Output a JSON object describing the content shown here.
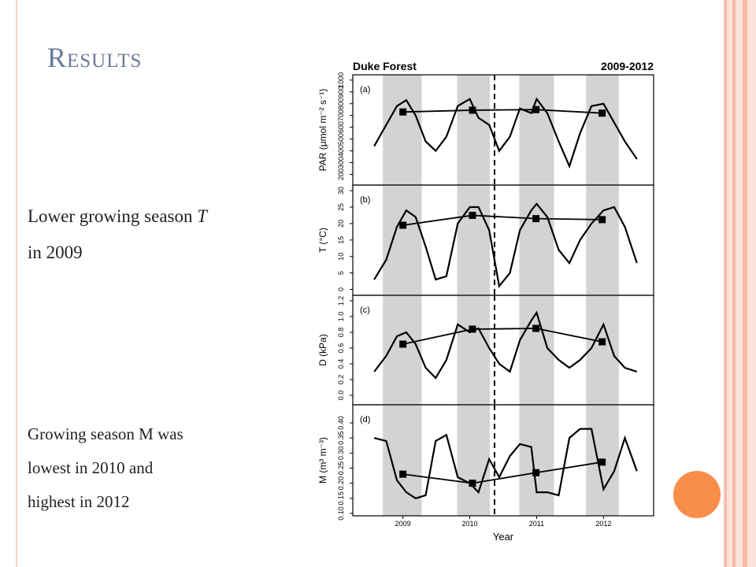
{
  "slide": {
    "title": "Results",
    "note1_parts": [
      "Lower growing season ",
      "T"
    ],
    "note1_line2": "in 2009",
    "note2_lines": [
      "Growing season M was",
      "lowest in 2010 and",
      "highest in 2012"
    ]
  },
  "figure": {
    "title_left": "Duke Forest",
    "title_right": "2009-2012",
    "xlabel": "Year",
    "xlim": [
      2008.25,
      2012.75
    ],
    "xticks": [
      2009,
      2010,
      2011,
      2012
    ],
    "shaded_spans": [
      [
        2008.7,
        2009.28
      ],
      [
        2009.81,
        2010.3
      ],
      [
        2010.74,
        2011.26
      ],
      [
        2011.74,
        2012.23
      ]
    ],
    "dashed_line": 2010.37,
    "shade_color": "#d3d3d3"
  },
  "chart_data": [
    {
      "type": "line",
      "panel_label": "(a)",
      "ylabel": "PAR (μmol m⁻² s⁻¹)",
      "ylim": [
        110,
        1045
      ],
      "yticks": [
        200,
        300,
        400,
        500,
        600,
        700,
        800,
        900,
        1000
      ],
      "x": [
        2008.57,
        2008.75,
        2008.91,
        2009.05,
        2009.19,
        2009.34,
        2009.49,
        2009.65,
        2009.82,
        2010.0,
        2010.13,
        2010.29,
        2010.44,
        2010.6,
        2010.75,
        2010.92,
        2011.0,
        2011.16,
        2011.33,
        2011.49,
        2011.65,
        2011.82,
        2012.0,
        2012.16,
        2012.32,
        2012.5
      ],
      "series": [
        {
          "color": "#000000",
          "values": [
            440,
            620,
            780,
            830,
            700,
            480,
            400,
            520,
            780,
            840,
            680,
            620,
            400,
            520,
            760,
            720,
            840,
            720,
            480,
            270,
            550,
            780,
            800,
            640,
            480,
            330
          ]
        }
      ],
      "annual": {
        "x": [
          2009.0,
          2010.04,
          2010.99,
          2011.98
        ],
        "values": [
          730,
          745,
          750,
          720
        ]
      }
    },
    {
      "type": "line",
      "panel_label": "(b)",
      "ylabel": "T (°C)",
      "ylim": [
        -1.8,
        31.7
      ],
      "yticks": [
        0,
        5,
        10,
        15,
        20,
        25,
        30
      ],
      "x": [
        2008.57,
        2008.75,
        2008.91,
        2009.05,
        2009.19,
        2009.34,
        2009.49,
        2009.65,
        2009.82,
        2010.0,
        2010.13,
        2010.29,
        2010.44,
        2010.6,
        2010.75,
        2010.92,
        2011.0,
        2011.16,
        2011.33,
        2011.49,
        2011.65,
        2011.82,
        2012.0,
        2012.16,
        2012.32,
        2012.5
      ],
      "series": [
        {
          "color": "#000000",
          "values": [
            3,
            9,
            19,
            24,
            22,
            13,
            3,
            4,
            20,
            25,
            25,
            18,
            1,
            5,
            18,
            24,
            26,
            22,
            12,
            8,
            15,
            20,
            24,
            25,
            19,
            8
          ]
        }
      ],
      "annual": {
        "x": [
          2009.0,
          2010.04,
          2010.99,
          2011.98
        ],
        "values": [
          19.5,
          22.5,
          21.5,
          21.2
        ]
      }
    },
    {
      "type": "line",
      "panel_label": "(c)",
      "ylabel": "D (kPa)",
      "ylim": [
        -0.12,
        1.27
      ],
      "yticks": [
        {
          "value": 0,
          "label": "0.0"
        },
        0.2,
        0.4,
        0.6,
        0.8,
        {
          "value": 1,
          "label": "1.0"
        },
        1.2
      ],
      "x": [
        2008.57,
        2008.75,
        2008.91,
        2009.05,
        2009.19,
        2009.34,
        2009.49,
        2009.65,
        2009.82,
        2010.0,
        2010.13,
        2010.29,
        2010.44,
        2010.6,
        2010.75,
        2010.92,
        2011.0,
        2011.16,
        2011.33,
        2011.49,
        2011.65,
        2011.82,
        2012.0,
        2012.16,
        2012.32,
        2012.5
      ],
      "series": [
        {
          "color": "#000000",
          "values": [
            0.3,
            0.5,
            0.75,
            0.8,
            0.65,
            0.35,
            0.22,
            0.45,
            0.9,
            0.8,
            0.85,
            0.6,
            0.4,
            0.3,
            0.7,
            0.95,
            1.05,
            0.6,
            0.45,
            0.35,
            0.45,
            0.6,
            0.9,
            0.5,
            0.35,
            0.3
          ]
        }
      ],
      "annual": {
        "x": [
          2009.0,
          2010.04,
          2010.99,
          2011.98
        ],
        "values": [
          0.65,
          0.84,
          0.85,
          0.68
        ]
      }
    },
    {
      "type": "line",
      "panel_label": "(d)",
      "ylabel": "M (m³ m⁻³)",
      "ylim": [
        0.092,
        0.46
      ],
      "yticks": [
        {
          "value": 0.1,
          "label": "0.10"
        },
        {
          "value": 0.15,
          "label": "0.15"
        },
        {
          "value": 0.2,
          "label": "0.20"
        },
        {
          "value": 0.25,
          "label": "0.25"
        },
        {
          "value": 0.3,
          "label": "0.30"
        },
        {
          "value": 0.35,
          "label": "0.35"
        },
        {
          "value": 0.4,
          "label": "0.40"
        }
      ],
      "x": [
        2008.57,
        2008.75,
        2008.91,
        2009.05,
        2009.19,
        2009.34,
        2009.49,
        2009.65,
        2009.82,
        2010.0,
        2010.13,
        2010.29,
        2010.44,
        2010.6,
        2010.75,
        2010.92,
        2011.0,
        2011.16,
        2011.33,
        2011.49,
        2011.65,
        2011.82,
        2012.0,
        2012.16,
        2012.32,
        2012.5
      ],
      "series": [
        {
          "color": "#000000",
          "values": [
            0.35,
            0.34,
            0.21,
            0.17,
            0.15,
            0.16,
            0.34,
            0.36,
            0.22,
            0.2,
            0.17,
            0.28,
            0.22,
            0.29,
            0.33,
            0.32,
            0.17,
            0.17,
            0.16,
            0.35,
            0.38,
            0.38,
            0.18,
            0.24,
            0.35,
            0.24
          ]
        }
      ],
      "annual": {
        "x": [
          2009.0,
          2010.04,
          2010.99,
          2011.98
        ],
        "values": [
          0.23,
          0.2,
          0.235,
          0.27
        ]
      }
    }
  ]
}
